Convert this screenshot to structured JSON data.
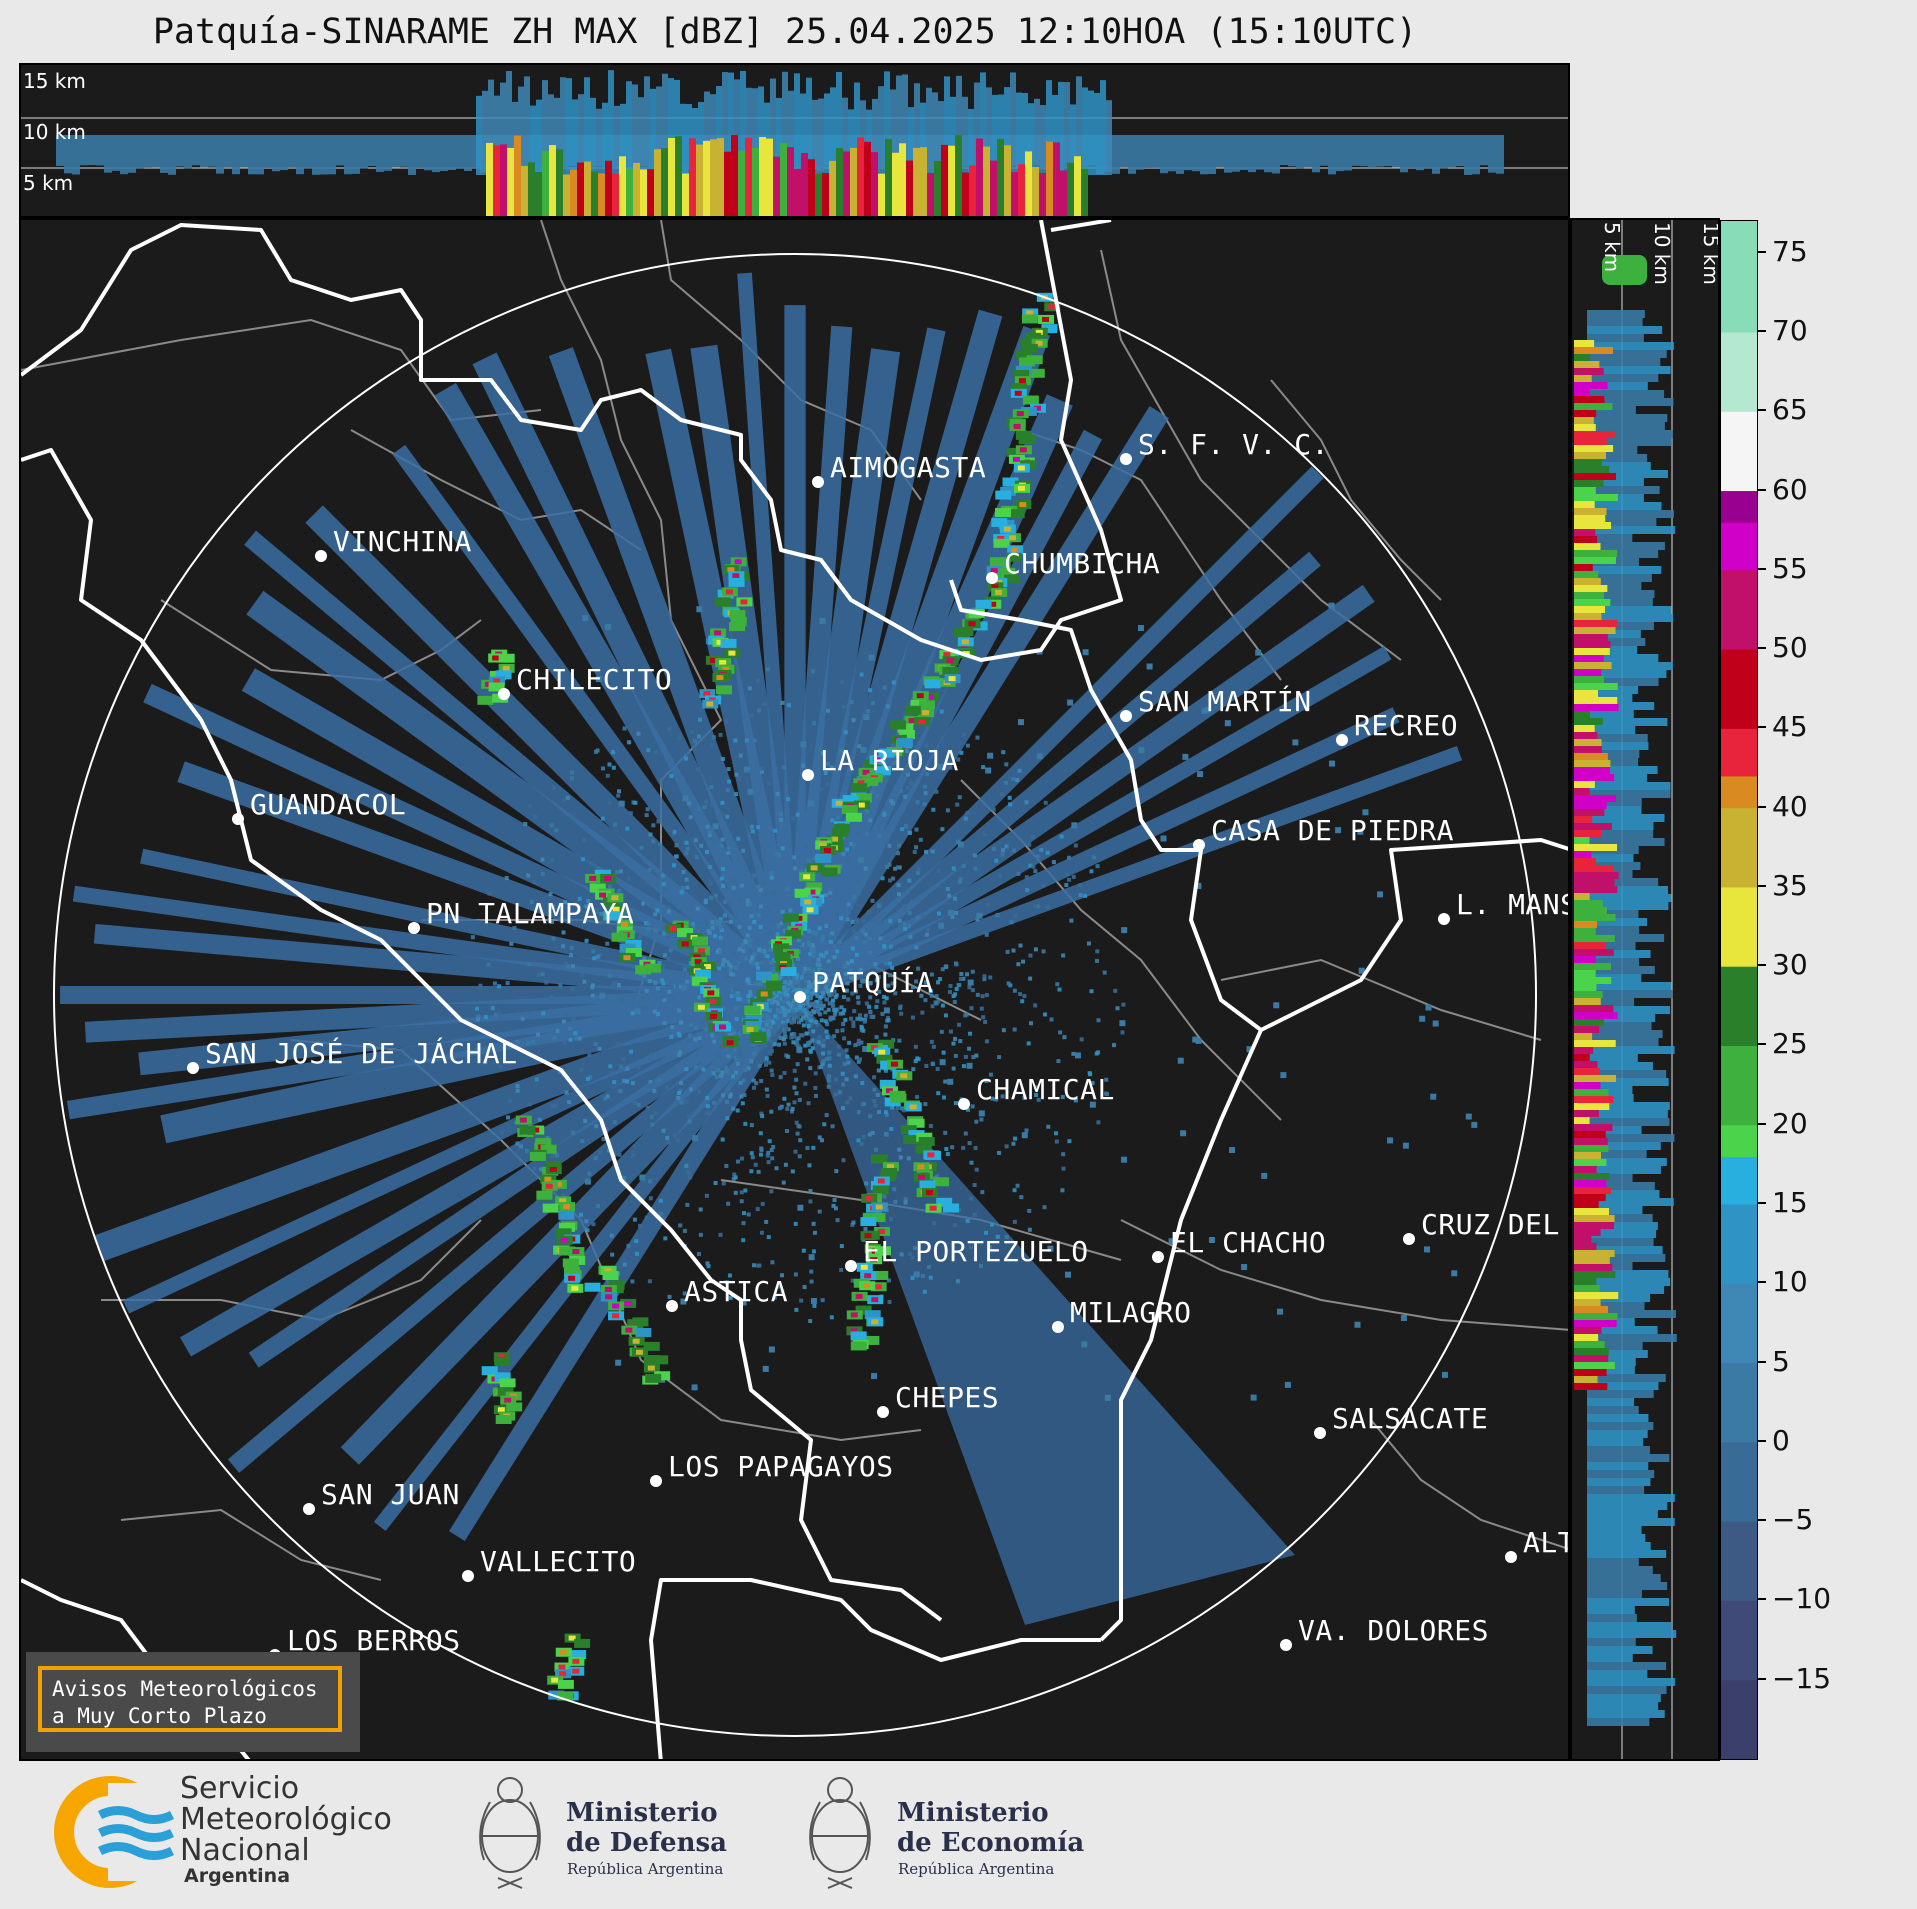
{
  "title": "Patquía-SINARAME ZH MAX [dBZ] 25.04.2025 12:10HOA (15:10UTC)",
  "height_labels": [
    "15 km",
    "10 km",
    "5 km"
  ],
  "legend": {
    "ticks": [
      75,
      70,
      65,
      60,
      55,
      50,
      45,
      40,
      35,
      30,
      25,
      20,
      15,
      10,
      5,
      0,
      -5,
      -10,
      -15
    ],
    "tick_labels": [
      "75",
      "70",
      "65",
      "60",
      "55",
      "50",
      "45",
      "40",
      "35",
      "30",
      "25",
      "20",
      "15",
      "10",
      "5",
      "0",
      "−5",
      "−10",
      "−15"
    ],
    "min": -20,
    "max": 77,
    "color_stops": [
      {
        "from": -20,
        "to": -15,
        "color": "#3b3f6b"
      },
      {
        "from": -15,
        "to": -10,
        "color": "#404a78"
      },
      {
        "from": -10,
        "to": -5,
        "color": "#3d5a85"
      },
      {
        "from": -5,
        "to": 0,
        "color": "#386c96"
      },
      {
        "from": 0,
        "to": 5,
        "color": "#3a7aa5"
      },
      {
        "from": 5,
        "to": 10,
        "color": "#3f87b5"
      },
      {
        "from": 10,
        "to": 15,
        "color": "#2f93c6"
      },
      {
        "from": 15,
        "to": 18,
        "color": "#29aee0"
      },
      {
        "from": 18,
        "to": 20,
        "color": "#4bd44b"
      },
      {
        "from": 20,
        "to": 25,
        "color": "#3db03d"
      },
      {
        "from": 25,
        "to": 30,
        "color": "#2a7f2a"
      },
      {
        "from": 30,
        "to": 35,
        "color": "#e8e63c"
      },
      {
        "from": 35,
        "to": 40,
        "color": "#c9b232"
      },
      {
        "from": 40,
        "to": 42,
        "color": "#d98a20"
      },
      {
        "from": 42,
        "to": 45,
        "color": "#e8243c"
      },
      {
        "from": 45,
        "to": 50,
        "color": "#c0001a"
      },
      {
        "from": 50,
        "to": 55,
        "color": "#c0106a"
      },
      {
        "from": 55,
        "to": 58,
        "color": "#d000c8"
      },
      {
        "from": 58,
        "to": 60,
        "color": "#9a0090"
      },
      {
        "from": 60,
        "to": 65,
        "color": "#f5f5f5"
      },
      {
        "from": 65,
        "to": 70,
        "color": "#b5e8d0"
      },
      {
        "from": 70,
        "to": 77,
        "color": "#88dcb8"
      }
    ]
  },
  "cities": [
    {
      "name": "AIMOGASTA"
    },
    {
      "name": "S. F. V. C."
    },
    {
      "name": "VINCHINA"
    },
    {
      "name": "CHUMBICHA"
    },
    {
      "name": "CHILECITO"
    },
    {
      "name": "SAN MARTÍN"
    },
    {
      "name": "RECREO"
    },
    {
      "name": "LA RIOJA"
    },
    {
      "name": "GUANDACOL"
    },
    {
      "name": "CASA DE PIEDRA"
    },
    {
      "name": "PN TALAMPAYA"
    },
    {
      "name": "L. MANS"
    },
    {
      "name": "PATQUÍA"
    },
    {
      "name": "SAN JOSÉ DE JÁCHAL"
    },
    {
      "name": "CHAMICAL"
    },
    {
      "name": "EL CHACHO"
    },
    {
      "name": "CRUZ DEL"
    },
    {
      "name": "EL PORTEZUELO"
    },
    {
      "name": "ASTICA"
    },
    {
      "name": "MILAGRO"
    },
    {
      "name": "CHEPES"
    },
    {
      "name": "SALSACATE"
    },
    {
      "name": "LOS PAPAGAYOS"
    },
    {
      "name": "SAN JUAN"
    },
    {
      "name": "VALLECITO"
    },
    {
      "name": "ALT"
    },
    {
      "name": "VA. DOLORES"
    },
    {
      "name": "LOS BERROS"
    }
  ],
  "notice": {
    "line1": "Avisos Meteorológicos",
    "line2": "a Muy Corto Plazo"
  },
  "logos": {
    "smn": {
      "line1": "Servicio",
      "line2": "Meteorológico",
      "line3": "Nacional",
      "line4": "Argentina"
    },
    "defensa": {
      "line1": "Ministerio",
      "line2": "de Defensa",
      "line3": "República Argentina"
    },
    "economia": {
      "line1": "Ministerio",
      "line2": "de Economía",
      "line3": "República Argentina"
    }
  },
  "colors": {
    "background": "#e9e9e9",
    "panel": "#1b1b1b",
    "border_white": "#ffffff",
    "province_gray": "#8a8a8a",
    "notice_border": "#f2a200",
    "smn_orange": "#f7a600",
    "smn_blue": "#2b9fd8"
  }
}
